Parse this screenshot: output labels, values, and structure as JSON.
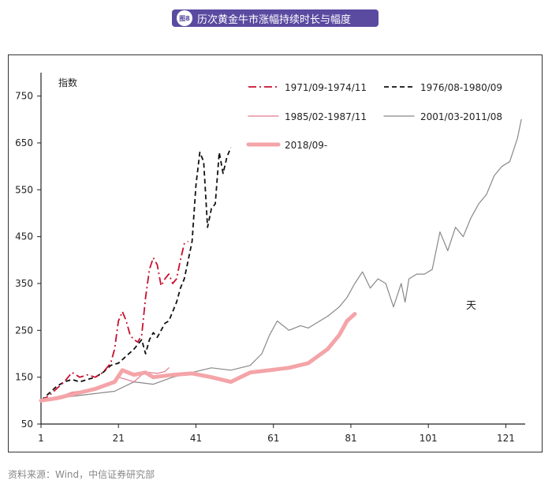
{
  "header": {
    "badge": "图8",
    "title": "历次黄金牛市涨幅持续时长与幅度"
  },
  "source": "资料来源：Wind，中信证券研究部",
  "chart_data": {
    "type": "line",
    "title": "历次黄金牛市涨幅持续时长与幅度",
    "ylabel": "指数",
    "xlabel": "天",
    "xlim": [
      1,
      126
    ],
    "ylim": [
      50,
      800
    ],
    "xticks": [
      1,
      21,
      41,
      61,
      81,
      101,
      121
    ],
    "yticks": [
      50,
      150,
      250,
      350,
      450,
      550,
      650,
      750
    ],
    "legend_position": "top-right",
    "series": [
      {
        "name": "1971/09-1974/11",
        "style": "dash-dot",
        "color": "#c8102e",
        "x": [
          1,
          3,
          5,
          7,
          9,
          11,
          13,
          15,
          17,
          19,
          20,
          21,
          22,
          23,
          24,
          25,
          26,
          27,
          28,
          29,
          30,
          31,
          32,
          33,
          34,
          35,
          36,
          37,
          38,
          39
        ],
        "y": [
          100,
          110,
          125,
          140,
          160,
          150,
          155,
          150,
          160,
          180,
          210,
          270,
          290,
          270,
          240,
          230,
          225,
          240,
          320,
          380,
          405,
          390,
          345,
          360,
          370,
          350,
          360,
          400,
          435,
          440
        ]
      },
      {
        "name": "1976/08-1980/09",
        "style": "dash",
        "color": "#111111",
        "x": [
          1,
          3,
          5,
          7,
          9,
          11,
          13,
          15,
          17,
          19,
          21,
          23,
          25,
          27,
          28,
          29,
          30,
          31,
          32,
          33,
          34,
          35,
          36,
          37,
          38,
          39,
          40,
          41,
          42,
          43,
          44,
          45,
          46,
          47,
          48,
          49,
          50
        ],
        "y": [
          100,
          115,
          130,
          140,
          145,
          140,
          145,
          150,
          160,
          175,
          180,
          195,
          210,
          230,
          200,
          230,
          245,
          235,
          250,
          265,
          270,
          290,
          310,
          340,
          360,
          400,
          440,
          560,
          630,
          610,
          470,
          510,
          520,
          630,
          585,
          620,
          640
        ]
      },
      {
        "name": "1985/02-1987/11",
        "style": "solid",
        "color": "#e07a8f",
        "x": [
          1,
          3,
          5,
          7,
          9,
          11,
          13,
          15,
          17,
          19,
          21,
          23,
          25,
          27,
          29,
          31,
          33,
          34
        ],
        "y": [
          100,
          105,
          108,
          112,
          118,
          120,
          122,
          125,
          128,
          135,
          150,
          145,
          140,
          155,
          160,
          158,
          162,
          170
        ]
      },
      {
        "name": "2001/03-2011/08",
        "style": "solid",
        "color": "#888888",
        "x": [
          1,
          5,
          10,
          15,
          20,
          25,
          30,
          35,
          40,
          45,
          50,
          55,
          58,
          60,
          62,
          65,
          68,
          70,
          72,
          75,
          78,
          80,
          82,
          84,
          86,
          88,
          90,
          92,
          94,
          95,
          96,
          98,
          100,
          102,
          104,
          106,
          108,
          110,
          112,
          114,
          116,
          118,
          120,
          122,
          124,
          125
        ],
        "y": [
          100,
          105,
          110,
          115,
          120,
          140,
          135,
          150,
          160,
          170,
          165,
          175,
          200,
          240,
          270,
          250,
          260,
          255,
          265,
          280,
          300,
          320,
          350,
          375,
          340,
          360,
          350,
          300,
          350,
          310,
          360,
          370,
          370,
          380,
          460,
          420,
          470,
          450,
          490,
          520,
          540,
          580,
          600,
          610,
          660,
          700
        ]
      },
      {
        "name": "2018/09-",
        "style": "thick",
        "color": "#f4a4a8",
        "x": [
          1,
          5,
          10,
          15,
          20,
          22,
          25,
          28,
          30,
          35,
          40,
          45,
          50,
          55,
          60,
          65,
          70,
          75,
          78,
          80,
          82
        ],
        "y": [
          100,
          105,
          115,
          125,
          140,
          165,
          155,
          160,
          150,
          155,
          158,
          150,
          140,
          160,
          165,
          170,
          180,
          210,
          240,
          270,
          285
        ]
      }
    ]
  }
}
